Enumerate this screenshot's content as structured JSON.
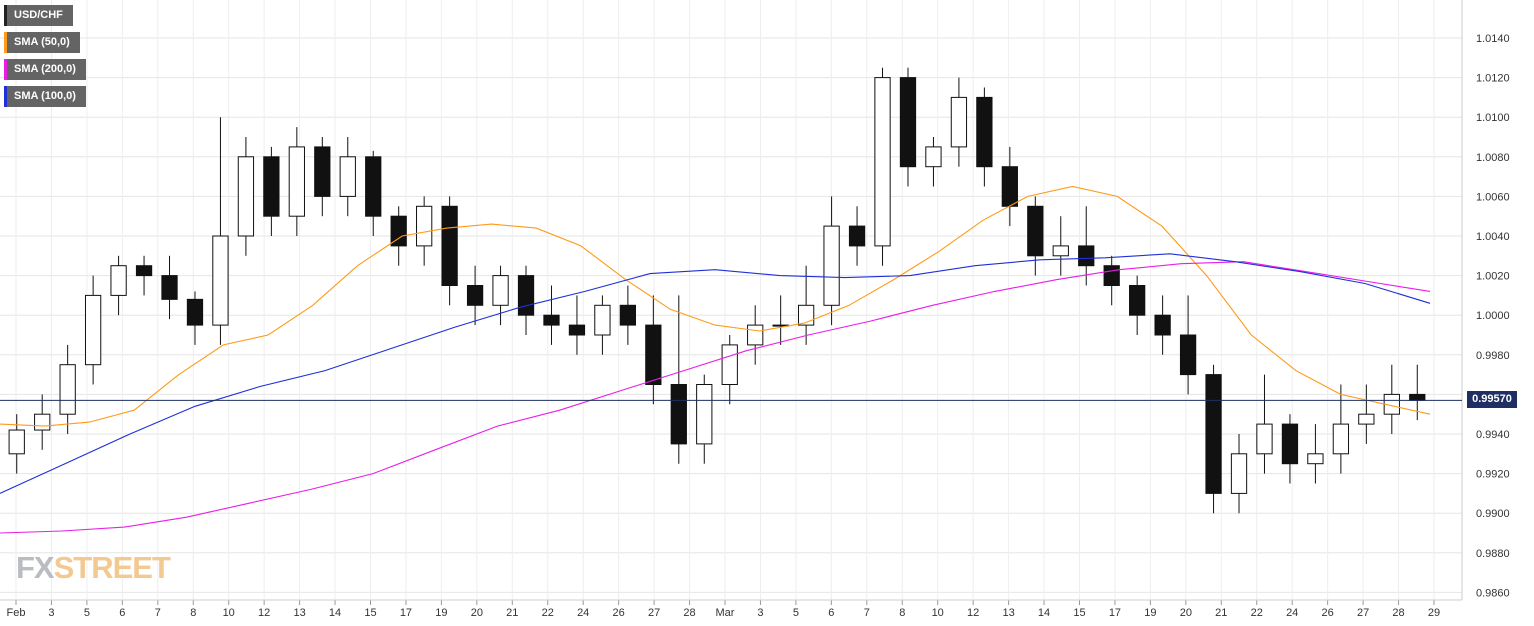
{
  "legend": {
    "items": [
      {
        "label": "USD/CHF",
        "color": "#222222"
      },
      {
        "label": "SMA (50,0)",
        "color": "#ff9a1a"
      },
      {
        "label": "SMA (200,0)",
        "color": "#e81ee8"
      },
      {
        "label": "SMA (100,0)",
        "color": "#2030d8"
      }
    ]
  },
  "brand": {
    "fx": "FX",
    "street": "STREET"
  },
  "current_price": {
    "label": "0.99570",
    "value": 0.9957
  },
  "chart_data": {
    "type": "candlestick",
    "title": "",
    "ylim": [
      0.9852,
      1.0152
    ],
    "yticks": [
      "1.0140",
      "1.0120",
      "1.0100",
      "1.0080",
      "1.0060",
      "1.0040",
      "1.0020",
      "1.0000",
      "0.9980",
      "0.9960",
      "0.9940",
      "0.9920",
      "0.9900",
      "0.9880",
      "0.9860"
    ],
    "xticks": [
      "Feb",
      "3",
      "5",
      "6",
      "7",
      "8",
      "10",
      "12",
      "13",
      "14",
      "15",
      "17",
      "19",
      "20",
      "21",
      "22",
      "24",
      "26",
      "27",
      "28",
      "Mar",
      "3",
      "5",
      "6",
      "7",
      "8",
      "10",
      "12",
      "13",
      "14",
      "15",
      "17",
      "19",
      "20",
      "21",
      "22",
      "24",
      "26",
      "27",
      "28",
      "29"
    ],
    "grid": true,
    "series": [
      {
        "name": "USD/CHF",
        "points": [
          [
            0.993,
            0.995,
            0.9942
          ],
          [
            0.9942,
            0.996,
            0.995
          ],
          [
            0.995,
            0.9985,
            0.9975
          ],
          [
            0.9975,
            1.002,
            1.001
          ],
          [
            1.001,
            1.003,
            1.0025
          ],
          [
            1.0025,
            1.003,
            1.002
          ],
          [
            1.002,
            1.003,
            1.0008
          ],
          [
            1.0008,
            1.0012,
            0.9995
          ],
          [
            0.9995,
            1.01,
            1.004
          ],
          [
            1.004,
            1.009,
            1.008
          ],
          [
            1.008,
            1.0085,
            1.005
          ],
          [
            1.005,
            1.0095,
            1.0085
          ],
          [
            1.0085,
            1.009,
            1.006
          ],
          [
            1.006,
            1.009,
            1.008
          ],
          [
            1.008,
            1.0083,
            1.005
          ],
          [
            1.005,
            1.0055,
            1.0035
          ],
          [
            1.0035,
            1.006,
            1.0055
          ],
          [
            1.0055,
            1.006,
            1.0015
          ],
          [
            1.0015,
            1.0025,
            1.0005
          ],
          [
            1.0005,
            1.0025,
            1.002
          ],
          [
            1.002,
            1.0025,
            1.0
          ],
          [
            1.0,
            1.0015,
            0.9995
          ],
          [
            0.9995,
            1.001,
            0.999
          ],
          [
            0.999,
            1.001,
            1.0005
          ],
          [
            1.0005,
            1.0015,
            0.9995
          ],
          [
            0.9995,
            1.001,
            0.9965
          ],
          [
            0.9965,
            1.001,
            0.9935
          ],
          [
            0.9935,
            0.997,
            0.9965
          ],
          [
            0.9965,
            0.999,
            0.9985
          ],
          [
            0.9985,
            1.0005,
            0.9995
          ],
          [
            0.9995,
            1.001,
            0.9995
          ],
          [
            0.9995,
            1.0025,
            1.0005
          ],
          [
            1.0005,
            1.006,
            1.0045
          ],
          [
            1.0045,
            1.0055,
            1.0035
          ],
          [
            1.0035,
            1.0125,
            1.012
          ],
          [
            1.012,
            1.0125,
            1.0075
          ],
          [
            1.0075,
            1.009,
            1.0085
          ],
          [
            1.0085,
            1.012,
            1.011
          ],
          [
            1.011,
            1.0115,
            1.0075
          ],
          [
            1.0075,
            1.0085,
            1.0055
          ],
          [
            1.0055,
            1.006,
            1.003
          ],
          [
            1.003,
            1.005,
            1.0035
          ],
          [
            1.0035,
            1.0055,
            1.0025
          ],
          [
            1.0025,
            1.003,
            1.0015
          ],
          [
            1.0015,
            1.002,
            1.0
          ],
          [
            1.0,
            1.001,
            0.999
          ],
          [
            0.999,
            1.001,
            0.997
          ],
          [
            0.997,
            0.9975,
            0.991
          ],
          [
            0.991,
            0.994,
            0.993
          ],
          [
            0.993,
            0.997,
            0.9945
          ],
          [
            0.9945,
            0.995,
            0.9925
          ],
          [
            0.9925,
            0.9945,
            0.993
          ],
          [
            0.993,
            0.9965,
            0.9945
          ],
          [
            0.9945,
            0.9965,
            0.995
          ],
          [
            0.995,
            0.9975,
            0.996
          ],
          [
            0.996,
            0.9975,
            0.9957
          ]
        ]
      },
      {
        "name": "SMA (50,0)",
        "points": [
          0.9945,
          0.9944,
          0.9946,
          0.9952,
          0.997,
          0.9985,
          0.999,
          1.0005,
          1.0025,
          1.004,
          1.0044,
          1.0046,
          1.0044,
          1.0035,
          1.0018,
          1.0003,
          0.9995,
          0.9992,
          0.9996,
          1.0005,
          1.0018,
          1.0032,
          1.0048,
          1.006,
          1.0065,
          1.006,
          1.0045,
          1.002,
          0.999,
          0.9972,
          0.996,
          0.9955,
          0.995
        ]
      },
      {
        "name": "SMA (200,0)",
        "points": [
          0.989,
          0.9891,
          0.9893,
          0.9898,
          0.9905,
          0.9912,
          0.992,
          0.9932,
          0.9944,
          0.9952,
          0.9962,
          0.9972,
          0.9982,
          0.999,
          0.9997,
          1.0005,
          1.0012,
          1.0018,
          1.0023,
          1.0026,
          1.0027,
          1.0022,
          1.0017,
          1.0012
        ]
      },
      {
        "name": "SMA (100,0)",
        "points": [
          0.991,
          0.9925,
          0.994,
          0.9954,
          0.9964,
          0.9972,
          0.9983,
          0.9994,
          1.0004,
          1.0012,
          1.0021,
          1.0023,
          1.002,
          1.0019,
          1.002,
          1.0025,
          1.0028,
          1.0029,
          1.0031,
          1.0027,
          1.0022,
          1.0016,
          1.0006
        ]
      }
    ]
  }
}
